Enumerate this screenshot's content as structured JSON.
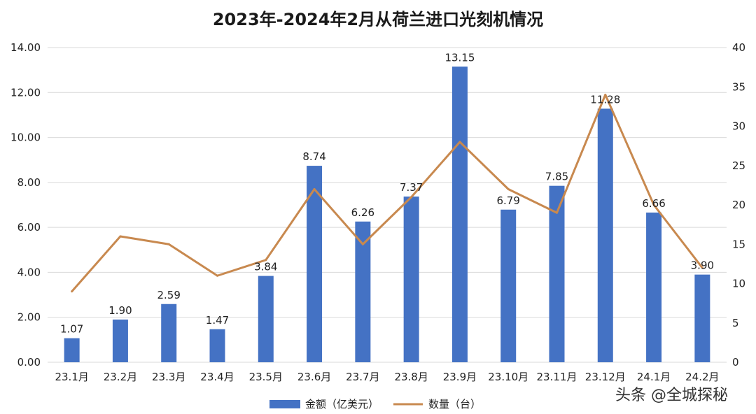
{
  "chart_data": {
    "type": "bar",
    "title": "2023年-2024年2月从荷兰进口光刻机情况",
    "categories": [
      "23.1月",
      "23.2月",
      "23.3月",
      "23.4月",
      "23.5月",
      "23.6月",
      "23.7月",
      "23.8月",
      "23.9月",
      "23.10月",
      "23.11月",
      "23.12月",
      "24.1月",
      "24.2月"
    ],
    "series": [
      {
        "name": "金额（亿美元）",
        "type": "bar",
        "axis": "left",
        "color": "#4472C4",
        "values": [
          1.07,
          1.9,
          2.59,
          1.47,
          3.84,
          8.74,
          6.26,
          7.37,
          13.15,
          6.79,
          7.85,
          11.28,
          6.66,
          3.9
        ],
        "labels": [
          "1.07",
          "1.90",
          "2.59",
          "1.47",
          "3.84",
          "8.74",
          "6.26",
          "7.37",
          "13.15",
          "6.79",
          "7.85",
          "11.28",
          "6.66",
          "3.90"
        ]
      },
      {
        "name": "数量（台）",
        "type": "line",
        "axis": "right",
        "color": "#C8894F",
        "values": [
          9,
          16,
          15,
          11,
          13,
          22,
          15,
          21,
          28,
          22,
          19,
          34,
          20,
          12
        ]
      }
    ],
    "y_left": {
      "min": 0,
      "max": 14,
      "ticks": [
        "0.00",
        "2.00",
        "4.00",
        "6.00",
        "8.00",
        "10.00",
        "12.00",
        "14.00"
      ]
    },
    "y_right": {
      "min": 0,
      "max": 40,
      "ticks": [
        "0",
        "5",
        "10",
        "15",
        "20",
        "25",
        "30",
        "35",
        "40"
      ]
    },
    "grid": true,
    "legend": "bottom"
  },
  "watermark": {
    "text": "头条 @全城探秘"
  }
}
